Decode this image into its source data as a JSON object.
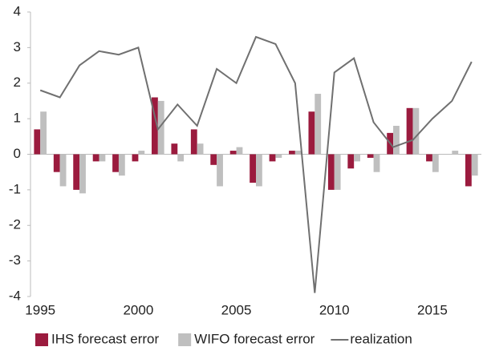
{
  "chart_data": {
    "type": "bar",
    "categories": [
      "1995",
      null,
      null,
      null,
      null,
      "2000",
      null,
      null,
      null,
      null,
      "2005",
      null,
      null,
      null,
      null,
      "2010",
      null,
      null,
      null,
      null,
      "2015",
      null,
      null
    ],
    "series": [
      {
        "name": "IHS forecast error",
        "color": "#9b1b3e",
        "type": "bar",
        "values": [
          0.7,
          -0.5,
          -1.0,
          -0.2,
          -0.5,
          -0.2,
          1.6,
          0.3,
          0.7,
          -0.3,
          0.1,
          -0.8,
          -0.2,
          0.1,
          1.2,
          -1.0,
          -0.4,
          -0.1,
          0.6,
          1.3,
          -0.2,
          0.0,
          -0.9
        ]
      },
      {
        "name": "WIFO forecast error",
        "color": "#bfbfbf",
        "type": "bar",
        "values": [
          1.2,
          -0.9,
          -1.1,
          -0.2,
          -0.6,
          0.1,
          1.5,
          -0.2,
          0.3,
          -0.9,
          0.2,
          -0.9,
          -0.1,
          0.1,
          1.7,
          -1.0,
          -0.2,
          -0.5,
          0.8,
          1.3,
          -0.5,
          0.1,
          -0.6
        ]
      },
      {
        "name": "realization",
        "color": "#707070",
        "type": "line",
        "values": [
          1.8,
          1.6,
          2.5,
          2.9,
          2.8,
          3.0,
          0.7,
          1.4,
          0.8,
          2.4,
          2.0,
          3.3,
          3.1,
          2.0,
          -3.9,
          2.3,
          2.7,
          0.9,
          0.2,
          0.4,
          1.0,
          1.5,
          2.6
        ]
      }
    ],
    "ylim": [
      -4,
      4
    ],
    "yticks": [
      -4,
      -3,
      -2,
      -1,
      0,
      1,
      2,
      3,
      4
    ],
    "grid": false,
    "legend": "bottom"
  }
}
